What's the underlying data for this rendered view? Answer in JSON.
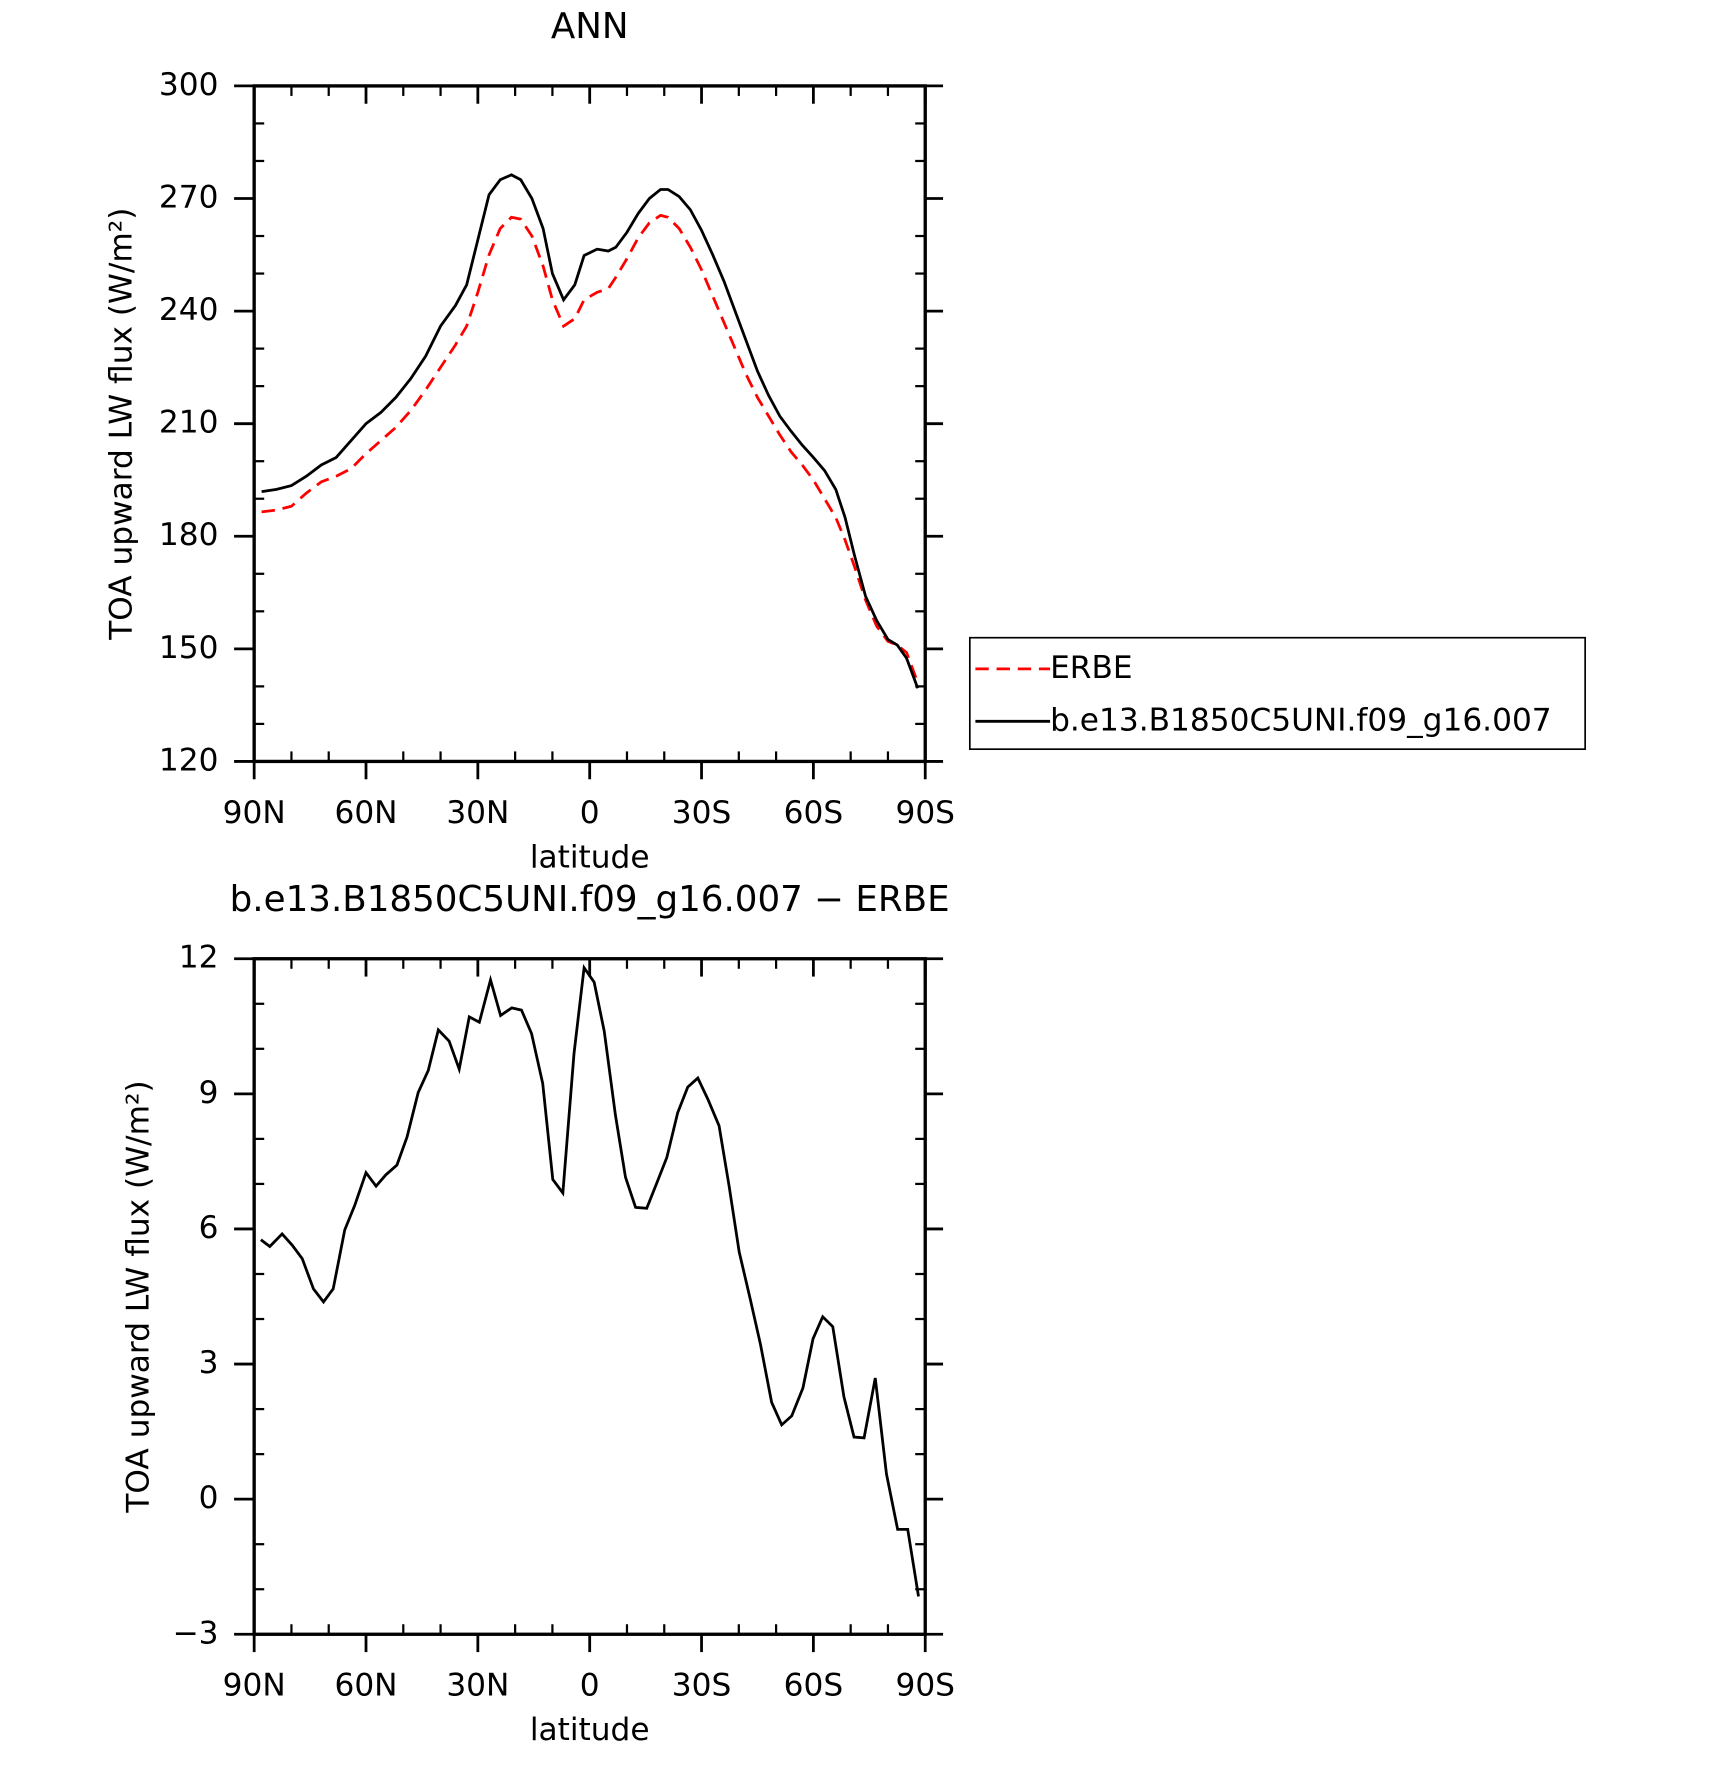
{
  "chart_data": [
    {
      "type": "line",
      "title": "ANN",
      "xlabel": "latitude",
      "ylabel": "TOA upward LW flux (W/m²)",
      "x": [
        88,
        84,
        80,
        76,
        72,
        68,
        64,
        60,
        56,
        52,
        48,
        44,
        40,
        36,
        33,
        30,
        27,
        24,
        21,
        18.5,
        15.5,
        12.5,
        10,
        7,
        4,
        1.5,
        -2,
        -5,
        -7,
        -10,
        -13,
        -16,
        -19,
        -21,
        -24,
        -27,
        -30,
        -33,
        -36,
        -39,
        -42,
        -45,
        -48,
        -51,
        -54,
        -57,
        -60,
        -63,
        -66,
        -68.5,
        -71,
        -74,
        -77,
        -80,
        -82.5,
        -85,
        -88
      ],
      "xlim": [
        90,
        -90
      ],
      "xticks": [
        {
          "value": 90,
          "label": "90N"
        },
        {
          "value": 60,
          "label": "60N"
        },
        {
          "value": 30,
          "label": "30N"
        },
        0,
        {
          "value": -30,
          "label": "30S"
        },
        {
          "value": -60,
          "label": "60S"
        },
        {
          "value": -90,
          "label": "90S"
        }
      ],
      "ylim": [
        120,
        300
      ],
      "yticks": [
        120,
        150,
        180,
        210,
        240,
        270,
        300
      ],
      "legend": "right",
      "series": [
        {
          "name": "ERBE",
          "color": "#ff0000",
          "dash": true,
          "values": [
            186.5,
            187,
            188,
            191.5,
            194.5,
            196,
            198,
            202,
            205.5,
            209,
            213.5,
            219,
            225,
            231,
            236,
            245,
            255,
            262,
            265,
            264.5,
            260,
            252,
            243,
            236,
            238,
            243,
            245,
            246,
            249,
            254,
            259.5,
            263.5,
            265.5,
            265,
            262,
            257,
            251,
            244,
            237,
            230,
            223,
            217,
            212,
            207,
            202.5,
            199,
            195,
            190,
            185,
            179,
            172,
            163,
            156,
            152,
            151,
            149,
            141
          ]
        },
        {
          "name": "b.e13.B1850C5UNI.f09_g16.007",
          "color": "#000000",
          "values": [
            191.9,
            192.5,
            193.5,
            196,
            199,
            201,
            205.5,
            210,
            213,
            217,
            222,
            228,
            236,
            241.5,
            247,
            259,
            271,
            275,
            276.3,
            275,
            270,
            262,
            250,
            243,
            247,
            254.8,
            256.5,
            256,
            257,
            261,
            266,
            270,
            272.4,
            272.4,
            270.5,
            267,
            261.5,
            255,
            248,
            240,
            232,
            224,
            217.5,
            212,
            208,
            204.3,
            201,
            197.5,
            192.5,
            185,
            175,
            164,
            157.5,
            152.5,
            151,
            147.5,
            139.5
          ]
        }
      ]
    },
    {
      "type": "line",
      "title": "b.e13.B1850C5UNI.f09_g16.007 − ERBE",
      "xlabel": "latitude",
      "ylabel": "TOA upward LW flux (W/m²)",
      "x": [
        88.2,
        85.8,
        82.5,
        79.8,
        77.1,
        74.1,
        71.4,
        68.8,
        65.7,
        63,
        60,
        57.3,
        54.7,
        51.7,
        49,
        46,
        43.3,
        40.6,
        37.7,
        35,
        32.3,
        29.6,
        26.6,
        23.9,
        20.9,
        18.3,
        15.6,
        12.6,
        9.9,
        7.2,
        4.2,
        1.5,
        -1.2,
        -3.9,
        -6.9,
        -9.6,
        -12.3,
        -15.3,
        -18,
        -20.7,
        -23.6,
        -26.3,
        -29,
        -31.7,
        -34.7,
        -37.4,
        -40.1,
        -43.1,
        -45.8,
        -48.8,
        -51.5,
        -54.2,
        -57.2,
        -59.9,
        -62.5,
        -65.2,
        -68.2,
        -70.9,
        -73.6,
        -76.6,
        -79.6,
        -82.6,
        -85.3,
        -88.2
      ],
      "xlim": [
        90,
        -90
      ],
      "xticks": [
        {
          "value": 90,
          "label": "90N"
        },
        {
          "value": 60,
          "label": "60N"
        },
        {
          "value": 30,
          "label": "30N"
        },
        0,
        {
          "value": -30,
          "label": "30S"
        },
        {
          "value": -60,
          "label": "60S"
        },
        {
          "value": -90,
          "label": "90S"
        }
      ],
      "ylim": [
        -3,
        12
      ],
      "yticks": [
        {
          "value": -3,
          "label": "−3"
        },
        0,
        3,
        6,
        9,
        12
      ],
      "series": [
        {
          "color": "#000000",
          "values": [
            5.76,
            5.61,
            5.89,
            5.64,
            5.34,
            4.67,
            4.38,
            4.67,
            5.98,
            6.53,
            7.25,
            6.95,
            7.2,
            7.42,
            8.04,
            9.03,
            9.52,
            10.42,
            10.17,
            9.55,
            10.71,
            10.59,
            11.53,
            10.74,
            10.91,
            10.86,
            10.34,
            9.23,
            7.1,
            6.8,
            9.9,
            11.8,
            11.48,
            10.39,
            8.53,
            7.15,
            6.48,
            6.46,
            7.02,
            7.59,
            8.58,
            9.15,
            9.35,
            8.88,
            8.29,
            6.95,
            5.49,
            4.43,
            3.44,
            2.15,
            1.65,
            1.85,
            2.47,
            3.56,
            4.05,
            3.83,
            2.27,
            1.38,
            1.36,
            2.69,
            0.56,
            -0.67,
            -0.67,
            -2.16
          ]
        }
      ]
    }
  ]
}
